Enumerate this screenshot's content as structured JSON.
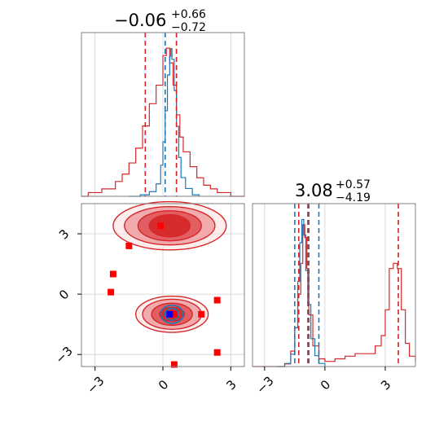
{
  "chart_data": {
    "type": "corner",
    "colors": {
      "red": "#d62728",
      "blue": "#1f77b4",
      "marker_red": "#ff0000",
      "marker_blue": "#0000ff"
    },
    "params": [
      {
        "title": {
          "median": "−0.06",
          "plus": "+0.66",
          "minus": "−0.72"
        },
        "range": [
          -3.6,
          3.6
        ],
        "ticks": [
          -3,
          0,
          3
        ],
        "tick_labels": [
          "−3",
          "0",
          "3"
        ],
        "quantiles_red": [
          -0.78,
          0.6
        ],
        "quantiles_blue": [
          0.1,
          0.6
        ],
        "hist_red": [
          [
            -3.6,
            0
          ],
          [
            -3.3,
            0.01
          ],
          [
            -3.0,
            0.01
          ],
          [
            -2.7,
            0.02
          ],
          [
            -2.4,
            0.02
          ],
          [
            -2.1,
            0.04
          ],
          [
            -1.8,
            0.06
          ],
          [
            -1.5,
            0.09
          ],
          [
            -1.2,
            0.13
          ],
          [
            -0.9,
            0.19
          ],
          [
            -0.6,
            0.25
          ],
          [
            -0.3,
            0.3
          ],
          [
            0.0,
            0.38
          ],
          [
            0.15,
            0.4
          ],
          [
            0.3,
            0.36
          ],
          [
            0.45,
            0.3
          ],
          [
            0.6,
            0.22
          ],
          [
            0.75,
            0.16
          ],
          [
            0.9,
            0.12
          ],
          [
            1.2,
            0.08
          ],
          [
            1.5,
            0.05
          ],
          [
            1.8,
            0.03
          ],
          [
            2.1,
            0.02
          ],
          [
            2.4,
            0.01
          ],
          [
            2.7,
            0.01
          ],
          [
            3.0,
            0
          ],
          [
            3.6,
            0
          ]
        ],
        "hist_blue": [
          [
            -1.5,
            0
          ],
          [
            -1.0,
            0.01
          ],
          [
            -0.6,
            0.03
          ],
          [
            -0.3,
            0.08
          ],
          [
            -0.1,
            0.2
          ],
          [
            0.0,
            0.35
          ],
          [
            0.1,
            0.55
          ],
          [
            0.2,
            0.78
          ],
          [
            0.3,
            0.9
          ],
          [
            0.35,
            0.95
          ],
          [
            0.4,
            0.88
          ],
          [
            0.5,
            0.68
          ],
          [
            0.6,
            0.45
          ],
          [
            0.7,
            0.25
          ],
          [
            0.8,
            0.12
          ],
          [
            1.0,
            0.05
          ],
          [
            1.3,
            0.01
          ],
          [
            1.6,
            0
          ]
        ]
      },
      {
        "title": {
          "median": "3.08",
          "plus": "+0.57",
          "minus": "−4.19"
        },
        "range": [
          -3.6,
          4.5
        ],
        "ticks": [
          -3,
          0,
          3
        ],
        "tick_labels": [
          "−3",
          "0",
          "3"
        ],
        "quantiles_red": [
          -1.3,
          -0.8,
          3.65
        ],
        "quantiles_blue": [
          -1.5,
          -0.85,
          -0.3
        ],
        "hist_red": [
          [
            -3.6,
            0
          ],
          [
            -2.0,
            0.01
          ],
          [
            -1.7,
            0.06
          ],
          [
            -1.5,
            0.15
          ],
          [
            -1.35,
            0.28
          ],
          [
            -1.2,
            0.4
          ],
          [
            -1.1,
            0.55
          ],
          [
            -1.0,
            0.5
          ],
          [
            -0.9,
            0.38
          ],
          [
            -0.8,
            0.2
          ],
          [
            -0.6,
            0.08
          ],
          [
            -0.3,
            0.03
          ],
          [
            0.0,
            0.02
          ],
          [
            0.5,
            0.03
          ],
          [
            1.0,
            0.04
          ],
          [
            1.5,
            0.05
          ],
          [
            2.0,
            0.05
          ],
          [
            2.5,
            0.08
          ],
          [
            2.8,
            0.12
          ],
          [
            3.0,
            0.22
          ],
          [
            3.2,
            0.38
          ],
          [
            3.4,
            0.4
          ],
          [
            3.6,
            0.38
          ],
          [
            3.8,
            0.22
          ],
          [
            4.0,
            0.09
          ],
          [
            4.2,
            0.04
          ],
          [
            4.5,
            0.02
          ]
        ],
        "hist_blue": [
          [
            -2.4,
            0
          ],
          [
            -2.0,
            0.02
          ],
          [
            -1.7,
            0.08
          ],
          [
            -1.5,
            0.25
          ],
          [
            -1.35,
            0.55
          ],
          [
            -1.25,
            0.8
          ],
          [
            -1.15,
            0.95
          ],
          [
            -1.05,
            0.85
          ],
          [
            -0.95,
            0.62
          ],
          [
            -0.85,
            0.4
          ],
          [
            -0.7,
            0.18
          ],
          [
            -0.5,
            0.07
          ],
          [
            -0.3,
            0.02
          ],
          [
            0.0,
            0
          ]
        ]
      }
    ],
    "joint": {
      "red_blobs": [
        {
          "cx": 0.3,
          "cy": 3.4,
          "rx": [
            0.9,
            1.4,
            2.0,
            2.5
          ],
          "ry": [
            0.55,
            0.75,
            0.95,
            1.2
          ]
        },
        {
          "cx": 0.4,
          "cy": -1.0,
          "rx": [
            0.55,
            0.9,
            1.3,
            1.6
          ],
          "ry": [
            0.35,
            0.55,
            0.75,
            0.9
          ]
        }
      ],
      "blue_blob": {
        "cx": 0.4,
        "cy": -1.0,
        "rx": [
          0.3,
          0.5
        ],
        "ry": [
          0.3,
          0.45
        ]
      },
      "red_markers": [
        [
          -0.1,
          3.4
        ],
        [
          -1.5,
          2.4
        ],
        [
          -2.2,
          1.0
        ],
        [
          -2.3,
          0.1
        ],
        [
          0.5,
          -1.0
        ],
        [
          1.7,
          -1.0
        ],
        [
          2.4,
          -0.3
        ],
        [
          2.4,
          -2.9
        ],
        [
          0.5,
          -3.5
        ]
      ],
      "blue_markers": [
        [
          0.3,
          -1.0
        ]
      ]
    }
  }
}
